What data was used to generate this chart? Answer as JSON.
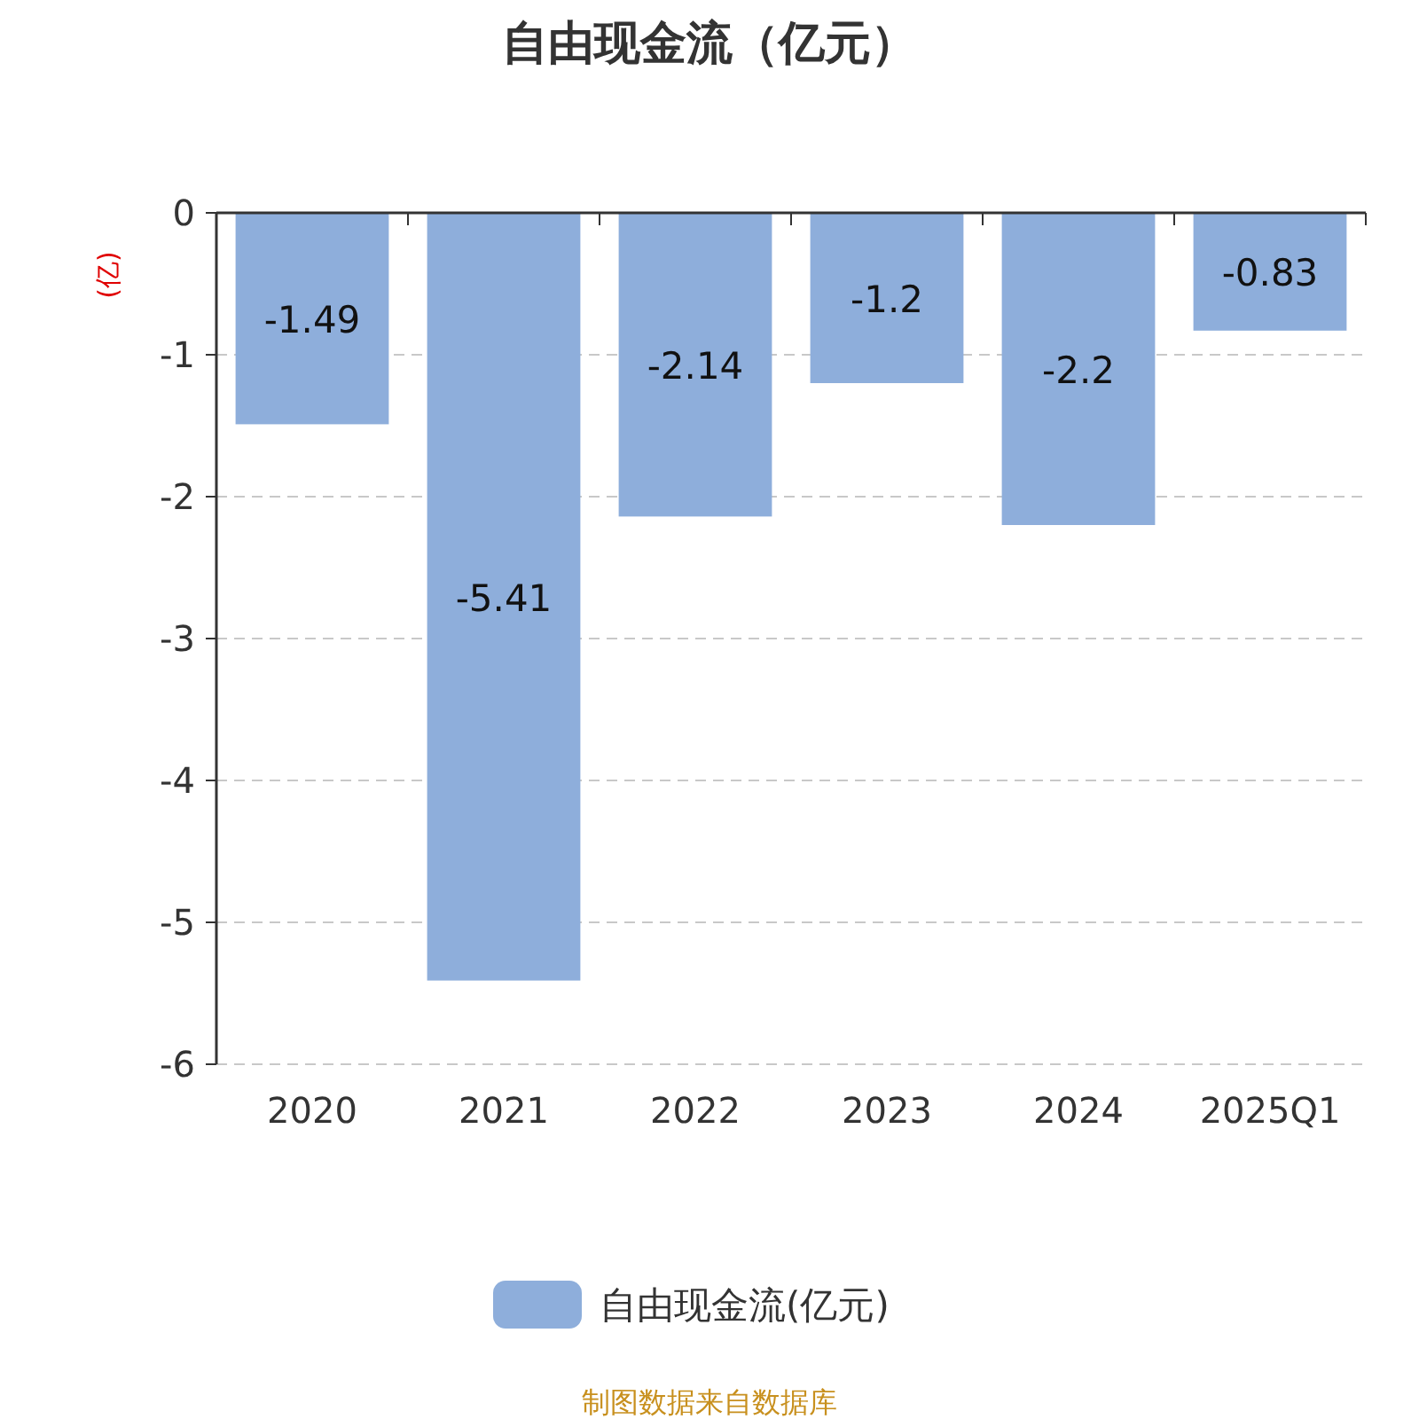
{
  "chart_data": {
    "type": "bar",
    "title": "自由现金流（亿元）",
    "ylabel": "(亿)",
    "categories": [
      "2020",
      "2021",
      "2022",
      "2023",
      "2024",
      "2025Q1"
    ],
    "series": [
      {
        "name": "自由现金流(亿元)",
        "color": "#8eaedb",
        "values": [
          -1.49,
          -5.41,
          -2.14,
          -1.2,
          -2.2,
          -0.83
        ]
      }
    ],
    "ylim": [
      -6,
      0
    ],
    "yticks": [
      0,
      -1,
      -2,
      -3,
      -4,
      -5,
      -6
    ],
    "grid": "y",
    "legend": "bottom",
    "data_labels": true,
    "annotations": [
      "制图数据来自数据库"
    ]
  }
}
